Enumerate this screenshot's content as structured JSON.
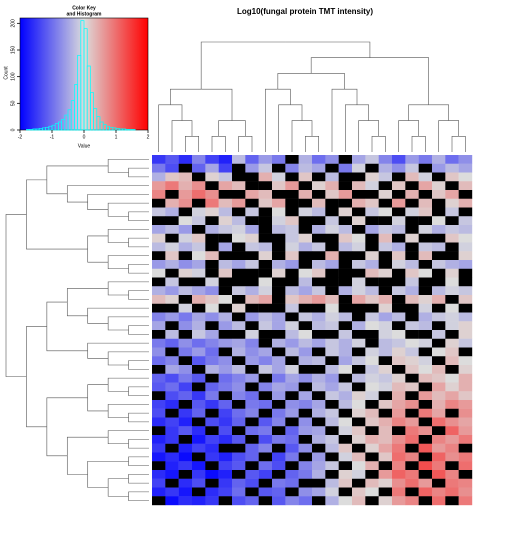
{
  "chart_data": {
    "type": "heatmap",
    "title": "Log10(fungal protein TMT intensity)",
    "colors": [
      "#0000ff",
      "#dcdcdc",
      "#ff0000"
    ],
    "missing_color": "#000000",
    "color_key": {
      "title": [
        "Color Key",
        "and Histogram"
      ],
      "xlabel": "Value",
      "ylabel": "Count",
      "xlim": [
        -2,
        2
      ],
      "xticks": [
        -2,
        -1,
        0,
        1,
        2
      ],
      "ylim": [
        0,
        210
      ],
      "yticks": [
        0,
        50,
        100,
        150,
        200
      ],
      "line_color": "#00ffff",
      "bins": [
        -2,
        -1.9,
        -1.8,
        -1.7,
        -1.6,
        -1.5,
        -1.4,
        -1.3,
        -1.2,
        -1.1,
        -1,
        -0.9,
        -0.8,
        -0.7,
        -0.6,
        -0.5,
        -0.4,
        -0.3,
        -0.2,
        -0.1,
        0,
        0.1,
        0.2,
        0.3,
        0.4,
        0.5,
        0.6,
        0.7,
        0.8,
        0.9,
        1,
        1.1,
        1.2,
        1.3,
        1.4,
        1.5,
        1.6,
        1.7,
        1.8,
        1.9,
        2
      ],
      "counts": [
        0,
        0,
        1,
        1,
        2,
        2,
        3,
        4,
        5,
        7,
        9,
        12,
        15,
        20,
        28,
        38,
        55,
        85,
        140,
        205,
        190,
        120,
        70,
        40,
        25,
        15,
        10,
        7,
        5,
        4,
        3,
        2,
        2,
        1,
        1,
        1,
        0,
        0,
        0,
        0
      ]
    },
    "values": [
      [
        -1.5,
        -1.2,
        -1.6,
        -0.8,
        -1.4,
        -1.7,
        -0.3,
        -1.1,
        -0.6,
        -0.9,
        null,
        -0.4,
        -1.0,
        -0.7,
        null,
        -0.5,
        -0.2,
        -0.8,
        -1.3,
        -0.6,
        -0.9,
        -0.4,
        -1.0,
        -0.7
      ],
      [
        -0.9,
        -1.3,
        null,
        -1.1,
        -0.5,
        -1.4,
        null,
        -0.6,
        -0.2,
        null,
        -0.8,
        -0.3,
        -0.5,
        null,
        -0.9,
        -0.1,
        null,
        -0.4,
        -0.7,
        -0.2,
        null,
        -0.6,
        -0.3,
        -0.5
      ],
      [
        -0.4,
        0.2,
        0.3,
        null,
        0.1,
        -0.2,
        null,
        null,
        0.4,
        -0.1,
        null,
        0.2,
        null,
        -0.3,
        null,
        null,
        0.1,
        -0.2,
        null,
        0.3,
        -0.1,
        null,
        0.2,
        0.0
      ],
      [
        0.6,
        0.9,
        0.4,
        0.7,
        null,
        0.5,
        0.3,
        null,
        null,
        0.2,
        0.6,
        null,
        0.1,
        0.4,
        null,
        0.3,
        -0.1,
        null,
        0.2,
        null,
        0.5,
        0.1,
        null,
        0.3
      ],
      [
        0.8,
        null,
        0.6,
        1.0,
        0.7,
        null,
        null,
        0.5,
        0.3,
        null,
        null,
        0.4,
        null,
        0.2,
        0.6,
        null,
        null,
        0.1,
        null,
        0.4,
        null,
        0.2,
        0.5,
        null
      ],
      [
        null,
        0.4,
        0.7,
        null,
        0.9,
        0.3,
        0.6,
        null,
        0.2,
        0.5,
        null,
        null,
        0.3,
        null,
        null,
        0.4,
        0.2,
        null,
        0.6,
        null,
        0.3,
        null,
        0.1,
        0.4
      ],
      [
        -0.2,
        -0.4,
        null,
        -0.1,
        0.1,
        -0.3,
        null,
        -0.2,
        null,
        0.0,
        null,
        -0.1,
        -0.3,
        null,
        0.1,
        null,
        -0.2,
        0.0,
        null,
        -0.1,
        0.2,
        null,
        -0.2,
        null
      ],
      [
        null,
        null,
        0.0,
        -0.2,
        null,
        0.1,
        -0.3,
        null,
        null,
        -0.1,
        0.2,
        null,
        null,
        -0.2,
        null,
        0.1,
        null,
        null,
        -0.1,
        null,
        null,
        0.0,
        null,
        -0.2
      ],
      [
        -0.5,
        -0.3,
        -0.6,
        null,
        -0.4,
        -0.2,
        -0.1,
        -0.5,
        null,
        -0.3,
        -0.2,
        null,
        -0.4,
        -0.1,
        -0.3,
        null,
        -0.5,
        -0.2,
        -0.3,
        null,
        -0.1,
        -0.4,
        -0.2,
        -0.3
      ],
      [
        0.1,
        null,
        -0.1,
        0.2,
        null,
        null,
        0.0,
        0.1,
        null,
        null,
        -0.2,
        0.1,
        null,
        null,
        0.2,
        0.0,
        null,
        0.3,
        null,
        0.1,
        null,
        null,
        0.2,
        0.0
      ],
      [
        -0.3,
        -0.1,
        -0.4,
        -0.2,
        null,
        -0.5,
        null,
        -0.2,
        -0.3,
        null,
        -0.1,
        -0.4,
        -0.2,
        null,
        -0.3,
        -0.1,
        null,
        -0.2,
        -0.4,
        null,
        -0.2,
        -0.3,
        null,
        -0.1
      ],
      [
        null,
        0.2,
        null,
        0.0,
        0.3,
        null,
        null,
        null,
        0.1,
        null,
        0.2,
        null,
        null,
        0.4,
        null,
        null,
        0.1,
        null,
        0.2,
        null,
        0.3,
        null,
        null,
        0.1
      ],
      [
        -0.6,
        -0.4,
        -0.7,
        -0.5,
        null,
        -0.3,
        -0.5,
        -0.2,
        null,
        -0.4,
        -0.6,
        null,
        -0.3,
        -0.5,
        null,
        -0.2,
        -0.4,
        null,
        -0.1,
        -0.3,
        null,
        -0.2,
        -0.4,
        -0.5
      ],
      [
        0.0,
        null,
        0.1,
        -0.1,
        null,
        0.2,
        null,
        null,
        null,
        0.1,
        null,
        0.0,
        0.2,
        null,
        null,
        null,
        0.3,
        0.1,
        null,
        0.2,
        0.0,
        null,
        0.1,
        null
      ],
      [
        null,
        -0.2,
        null,
        null,
        -0.1,
        null,
        null,
        null,
        0.0,
        null,
        null,
        -0.3,
        null,
        null,
        null,
        -0.1,
        null,
        null,
        null,
        -0.2,
        null,
        null,
        0.0,
        null
      ],
      [
        -0.4,
        -0.6,
        -0.3,
        -0.5,
        -0.7,
        null,
        -0.2,
        -0.4,
        -0.1,
        null,
        -0.3,
        -0.5,
        -0.2,
        null,
        -0.4,
        -0.1,
        -0.3,
        null,
        -0.2,
        -0.4,
        null,
        -0.3,
        -0.1,
        -0.2
      ],
      [
        0.3,
        0.1,
        null,
        0.4,
        0.2,
        0.0,
        null,
        0.3,
        0.5,
        null,
        0.2,
        0.4,
        0.6,
        0.3,
        null,
        0.5,
        0.2,
        0.4,
        null,
        0.3,
        0.1,
        0.4,
        null,
        0.2
      ],
      [
        null,
        null,
        -0.1,
        null,
        0.0,
        null,
        0.1,
        null,
        null,
        null,
        -0.2,
        null,
        null,
        0.0,
        null,
        null,
        null,
        0.1,
        null,
        null,
        -0.1,
        null,
        0.0,
        null
      ],
      [
        -0.8,
        -0.6,
        -0.9,
        -0.5,
        -0.7,
        -0.4,
        null,
        -0.6,
        -0.3,
        -0.5,
        null,
        -0.2,
        -0.4,
        -0.1,
        -0.3,
        null,
        -0.2,
        -0.5,
        -0.3,
        null,
        -0.4,
        -0.2,
        -0.1,
        -0.3
      ],
      [
        -0.5,
        null,
        -0.7,
        -0.4,
        null,
        -0.6,
        -0.3,
        null,
        -0.2,
        -0.5,
        -0.1,
        null,
        -0.3,
        -0.2,
        null,
        -0.4,
        0.0,
        -0.1,
        null,
        -0.2,
        -0.3,
        null,
        -0.1,
        0.1
      ],
      [
        null,
        -0.3,
        null,
        -0.2,
        -0.5,
        null,
        null,
        -0.1,
        null,
        null,
        -0.3,
        0.0,
        null,
        null,
        -0.2,
        null,
        null,
        -0.1,
        0.0,
        null,
        null,
        -0.2,
        null,
        0.1
      ],
      [
        -0.9,
        -1.1,
        -0.7,
        -1.0,
        -0.8,
        -0.6,
        -0.5,
        -0.8,
        null,
        -0.4,
        -0.6,
        -0.3,
        -0.5,
        -0.2,
        -0.4,
        -0.1,
        null,
        -0.3,
        -0.2,
        0.0,
        -0.1,
        null,
        0.1,
        -0.2
      ],
      [
        -0.7,
        null,
        -0.9,
        -0.6,
        -1.0,
        null,
        -0.4,
        -0.7,
        -0.5,
        null,
        -0.3,
        -0.6,
        null,
        -0.2,
        -0.4,
        null,
        -0.1,
        -0.3,
        0.1,
        -0.2,
        null,
        0.0,
        0.2,
        null
      ],
      [
        -1.0,
        -0.8,
        null,
        -1.2,
        -0.9,
        -0.7,
        null,
        -0.6,
        -0.8,
        -0.5,
        null,
        -0.4,
        -0.3,
        null,
        -0.5,
        -0.2,
        0.0,
        null,
        0.2,
        0.1,
        -0.1,
        null,
        0.3,
        0.0
      ],
      [
        null,
        -0.5,
        -0.7,
        null,
        -0.4,
        -0.6,
        -0.3,
        null,
        -0.2,
        -0.5,
        -0.1,
        null,
        null,
        -0.3,
        0.0,
        null,
        -0.2,
        0.1,
        null,
        0.2,
        0.0,
        0.3,
        null,
        0.1
      ],
      [
        -1.1,
        -1.3,
        -0.9,
        -1.2,
        null,
        -1.0,
        -0.8,
        -0.6,
        null,
        -0.9,
        -0.5,
        -0.7,
        -0.4,
        -0.6,
        null,
        -0.3,
        -0.1,
        -0.2,
        0.1,
        null,
        0.3,
        0.2,
        0.0,
        0.4
      ],
      [
        -1.2,
        -1.0,
        -1.4,
        null,
        -1.1,
        -0.9,
        -0.7,
        null,
        -0.8,
        -0.5,
        -0.6,
        null,
        -0.3,
        -0.5,
        -0.2,
        null,
        0.0,
        -0.1,
        0.3,
        0.2,
        null,
        0.5,
        0.1,
        0.4
      ],
      [
        null,
        -1.3,
        -1.1,
        -1.5,
        -0.9,
        null,
        -0.8,
        -1.0,
        null,
        -0.6,
        null,
        -0.5,
        null,
        -0.2,
        -0.4,
        0.1,
        -0.1,
        null,
        0.4,
        null,
        0.6,
        0.3,
        0.5,
        0.2
      ],
      [
        -1.4,
        -1.6,
        null,
        -1.2,
        -1.5,
        -1.1,
        null,
        -0.9,
        -1.0,
        null,
        -0.7,
        -0.8,
        -0.5,
        null,
        -0.3,
        0.0,
        null,
        0.2,
        0.5,
        0.7,
        null,
        0.4,
        0.8,
        0.6
      ],
      [
        -1.3,
        null,
        -1.5,
        -1.1,
        null,
        -1.4,
        -1.0,
        -0.8,
        null,
        -0.9,
        -0.6,
        null,
        -0.4,
        -0.2,
        null,
        0.1,
        0.3,
        null,
        0.6,
        null,
        0.9,
        0.5,
        null,
        0.7
      ],
      [
        -1.6,
        -1.4,
        -1.7,
        null,
        -1.3,
        -1.5,
        -1.1,
        null,
        -1.2,
        -0.8,
        null,
        -0.7,
        null,
        -0.3,
        0.0,
        null,
        0.2,
        0.4,
        0.8,
        0.6,
        null,
        1.0,
        0.7,
        0.5
      ],
      [
        null,
        -1.5,
        -1.2,
        -1.6,
        null,
        -1.3,
        null,
        -1.0,
        -0.9,
        null,
        -1.1,
        -0.6,
        -0.5,
        null,
        -0.1,
        0.2,
        null,
        0.3,
        null,
        0.9,
        0.7,
        null,
        1.1,
        0.6
      ],
      [
        -1.7,
        -1.5,
        null,
        -1.8,
        -1.4,
        -1.6,
        -1.2,
        null,
        -1.3,
        -0.9,
        -1.0,
        null,
        -0.4,
        -0.2,
        null,
        0.1,
        0.4,
        0.3,
        0.7,
        1.0,
        null,
        0.8,
        0.6,
        0.9
      ],
      [
        -1.5,
        null,
        -1.7,
        -1.4,
        -1.6,
        null,
        null,
        -1.1,
        -0.8,
        null,
        -1.2,
        -0.7,
        null,
        -0.3,
        0.2,
        null,
        0.1,
        0.5,
        0.9,
        null,
        1.2,
        0.6,
        0.8,
        null
      ],
      [
        -1.8,
        -1.6,
        -1.9,
        null,
        -1.5,
        -1.7,
        -1.3,
        -1.1,
        null,
        -1.4,
        -0.9,
        null,
        -0.6,
        null,
        -0.1,
        0.3,
        null,
        0.2,
        1.0,
        0.8,
        null,
        1.1,
        0.7,
        0.9
      ],
      [
        null,
        -1.7,
        -1.5,
        -1.8,
        null,
        -1.4,
        -1.2,
        null,
        -1.0,
        -1.3,
        null,
        -0.8,
        -0.5,
        -0.2,
        null,
        0.0,
        0.4,
        null,
        0.8,
        null,
        1.3,
        0.9,
        null,
        1.0
      ],
      [
        -1.6,
        -1.8,
        null,
        -1.5,
        -1.9,
        -1.7,
        null,
        -1.2,
        -1.4,
        null,
        -1.1,
        -0.9,
        -0.4,
        null,
        0.1,
        -0.1,
        null,
        0.6,
        1.1,
        0.9,
        null,
        1.2,
        0.8,
        null
      ],
      [
        -1.4,
        null,
        -1.6,
        -1.3,
        null,
        -1.5,
        -1.1,
        -1.3,
        null,
        -0.9,
        -1.0,
        null,
        null,
        -0.3,
        0.2,
        null,
        0.3,
        0.1,
        0.7,
        1.0,
        0.6,
        null,
        0.9,
        0.8
      ],
      [
        -1.7,
        -1.5,
        -1.8,
        null,
        -1.6,
        -1.4,
        -1.0,
        null,
        -1.2,
        -1.1,
        null,
        -0.7,
        -0.5,
        -0.1,
        null,
        0.2,
        0.0,
        null,
        0.9,
        null,
        1.1,
        0.8,
        1.0,
        0.7
      ],
      [
        null,
        -1.9,
        -1.6,
        -1.7,
        -1.5,
        null,
        -1.3,
        -1.1,
        null,
        -1.2,
        -0.8,
        -1.0,
        null,
        -0.4,
        0.0,
        0.3,
        null,
        0.1,
        0.6,
        0.8,
        null,
        1.0,
        null,
        0.9
      ]
    ]
  }
}
